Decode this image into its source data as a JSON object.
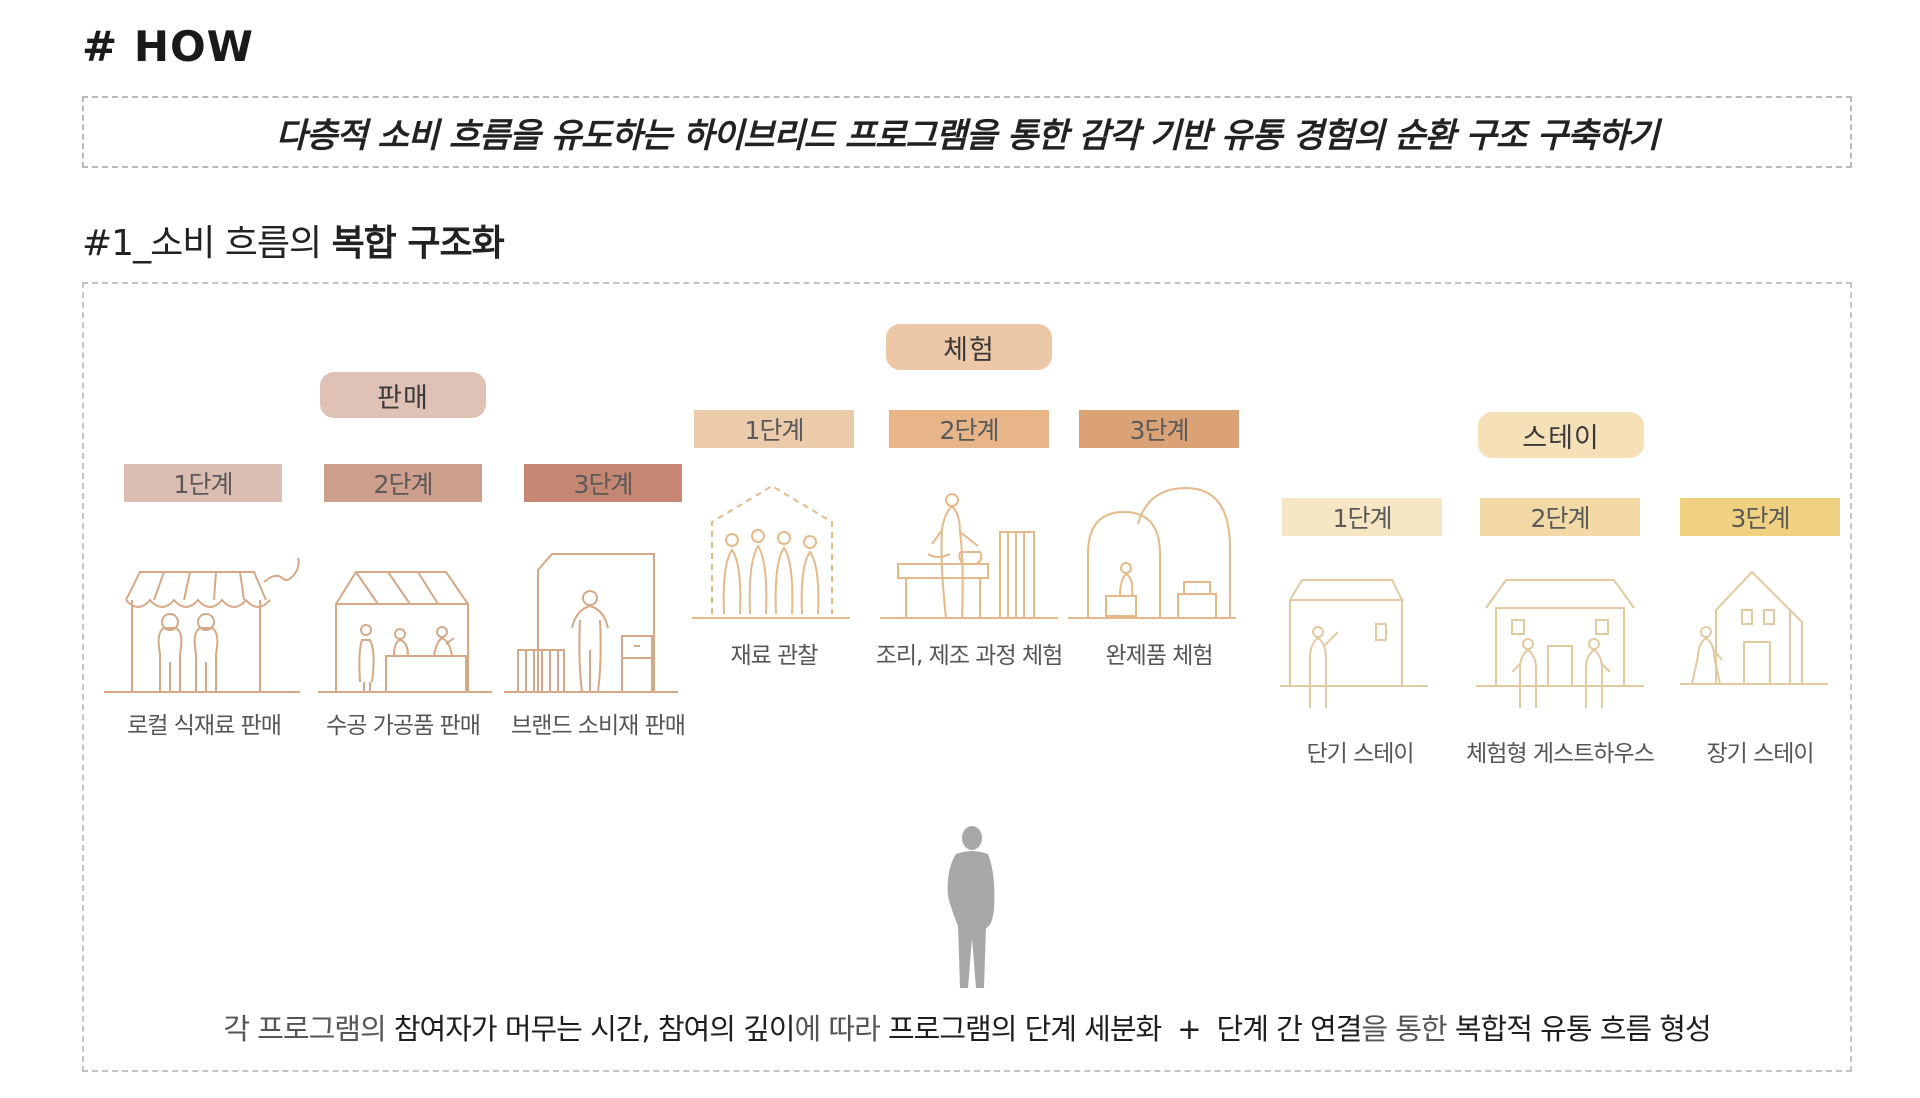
{
  "header": {
    "title": "# HOW"
  },
  "goal": {
    "text": "다층적 소비 흐름을 유도하는 하이브리드 프로그램을 통한 감각 기반 유통 경험의 순환 구조 구축하기"
  },
  "section": {
    "prefix": "#1_소비 흐름의 ",
    "emphasis": "복합 구조화"
  },
  "groups": [
    {
      "label": "판매",
      "color": "#dfc1b6",
      "stages": [
        {
          "label": "1단계",
          "color": "#dcbdb2",
          "caption": "로컬 식재료 판매"
        },
        {
          "label": "2단계",
          "color": "#cf9f8e",
          "caption": "수공 가공품 판매"
        },
        {
          "label": "3단계",
          "color": "#c58672",
          "caption": "브랜드 소비재 판매"
        }
      ]
    },
    {
      "label": "체험",
      "color": "#edc8a8",
      "stages": [
        {
          "label": "1단계",
          "color": "#ebcba9",
          "caption": "재료 관찰"
        },
        {
          "label": "2단계",
          "color": "#e7b587",
          "caption": "조리, 제조 과정 체험"
        },
        {
          "label": "3단계",
          "color": "#dba275",
          "caption": "완제품 체험"
        }
      ]
    },
    {
      "label": "스테이",
      "color": "#f5e0b8",
      "stages": [
        {
          "label": "1단계",
          "color": "#f6e6c4",
          "caption": "단기 스테이"
        },
        {
          "label": "2단계",
          "color": "#f3d9a5",
          "caption": "체험형 게스트하우스"
        },
        {
          "label": "3단계",
          "color": "#f0d182",
          "caption": "장기 스테이"
        }
      ]
    }
  ],
  "bottom": {
    "p1": "각 프로그램의 ",
    "e1": "참여자가 머무는 시간, 참여의 깊이",
    "p2": "에 따라 ",
    "e2": "프로그램의 단계 세분화",
    "plus": "+",
    "e3": "단계 간 연결",
    "p3": "을 통한 ",
    "e4": "복합적 유통 흐름 형성"
  },
  "colors": {
    "sales_line": "#d6a886",
    "experience_line": "#e6b98a",
    "stay_line": "#e3c9a0",
    "person_gray": "#a8a8a8"
  }
}
